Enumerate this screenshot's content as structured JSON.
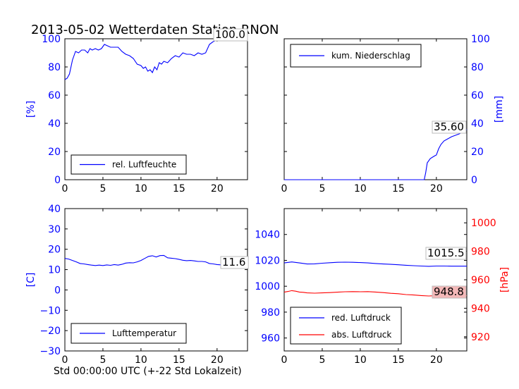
{
  "title": "2013-05-02 Wetterdaten Station RNON",
  "colors": {
    "blue": "#0000ff",
    "red": "#ff0000",
    "black": "#000000",
    "label_red_bg": "#f4b8b8"
  },
  "chart_data": [
    {
      "type": "line",
      "panel": "top-left",
      "ylabel": "[%]",
      "xlim": [
        0,
        24
      ],
      "ylim": [
        0,
        100
      ],
      "xticks": [
        "0",
        "5",
        "10",
        "15",
        "20"
      ],
      "yticks": [
        "0",
        "20",
        "40",
        "60",
        "80",
        "100"
      ],
      "legend": {
        "placement": "lower-left",
        "entries": [
          "rel. Luftfeuchte"
        ]
      },
      "last_value_label": "100.0",
      "series": [
        {
          "name": "rel. Luftfeuchte",
          "color": "#0000ff",
          "x": [
            0,
            0.3,
            0.6,
            1.0,
            1.4,
            1.8,
            2.2,
            2.6,
            3.0,
            3.3,
            3.6,
            4.0,
            4.4,
            4.8,
            5.2,
            5.6,
            6.0,
            6.5,
            7.0,
            7.5,
            8.0,
            8.5,
            9.0,
            9.5,
            10.0,
            10.3,
            10.6,
            10.9,
            11.2,
            11.5,
            11.8,
            12.1,
            12.4,
            12.7,
            13.0,
            13.5,
            14.0,
            14.5,
            15.0,
            15.5,
            16.0,
            16.5,
            17.0,
            17.5,
            18.0,
            18.5,
            19.0,
            19.5,
            20.0,
            21.0,
            22.0,
            23.0,
            24.0
          ],
          "y": [
            71,
            72,
            75,
            85,
            91,
            90,
            92,
            92,
            90,
            93,
            92,
            93,
            92,
            93,
            96,
            95,
            94,
            94,
            94,
            91,
            89,
            88,
            86,
            82,
            81,
            79,
            80,
            77,
            78,
            76,
            80,
            78,
            83,
            82,
            84,
            83,
            86,
            88,
            87,
            90,
            89,
            89,
            88,
            90,
            89,
            90,
            96,
            98,
            99,
            99.5,
            100,
            100,
            100
          ]
        }
      ]
    },
    {
      "type": "line",
      "panel": "top-right",
      "ylabel": "[mm]",
      "xlim": [
        0,
        24
      ],
      "ylim": [
        0,
        100
      ],
      "xticks": [
        "0",
        "5",
        "10",
        "15",
        "20"
      ],
      "yticks": [
        "0",
        "20",
        "40",
        "60",
        "80",
        "100"
      ],
      "legend": {
        "placement": "upper-left",
        "entries": [
          "kum. Niederschlag"
        ]
      },
      "last_value_label": "35.60",
      "series": [
        {
          "name": "kum. Niederschlag",
          "color": "#0000ff",
          "x": [
            0,
            18.4,
            18.6,
            18.8,
            19.2,
            19.5,
            19.8,
            20.0,
            20.3,
            20.6,
            21.0,
            21.5,
            22.0,
            22.5,
            23.0,
            23.5,
            24.0
          ],
          "y": [
            0,
            0,
            5,
            12,
            15,
            16,
            17,
            17.5,
            22,
            25,
            27.5,
            29,
            30.5,
            31.5,
            32.5,
            34,
            35.6
          ]
        }
      ]
    },
    {
      "type": "line",
      "panel": "bottom-left",
      "ylabel": "[C]",
      "xlabel": "Std 00:00:00 UTC (+-22 Std Lokalzeit)",
      "xlim": [
        0,
        24
      ],
      "ylim": [
        -30,
        40
      ],
      "xticks": [
        "0",
        "5",
        "10",
        "15",
        "20"
      ],
      "yticks": [
        "−30",
        "−20",
        "−10",
        "0",
        "10",
        "20",
        "30",
        "40"
      ],
      "legend": {
        "placement": "lower-left",
        "entries": [
          "Lufttemperatur"
        ]
      },
      "last_value_label": "11.6",
      "series": [
        {
          "name": "Lufttemperatur",
          "color": "#0000ff",
          "x": [
            0,
            0.5,
            1.0,
            1.5,
            2.0,
            2.5,
            3.0,
            3.5,
            4.0,
            4.5,
            5.0,
            5.5,
            6.0,
            6.5,
            7.0,
            7.5,
            8.0,
            8.5,
            9.0,
            9.5,
            10.0,
            10.5,
            11.0,
            11.5,
            12.0,
            12.5,
            13.0,
            13.5,
            14.0,
            14.5,
            15.0,
            15.5,
            16.0,
            16.5,
            17.0,
            17.5,
            18.0,
            18.5,
            19.0,
            19.5,
            20.0,
            21.0,
            22.0,
            23.0,
            24.0
          ],
          "y": [
            15.5,
            15.2,
            14.5,
            13.8,
            13.0,
            12.8,
            12.5,
            12.2,
            12.0,
            12.2,
            12.0,
            12.3,
            12.1,
            12.5,
            12.2,
            12.6,
            13.2,
            13.4,
            13.3,
            13.8,
            14.5,
            15.5,
            16.5,
            16.8,
            16.2,
            16.9,
            17.0,
            15.8,
            15.6,
            15.4,
            15.0,
            14.6,
            14.4,
            14.5,
            14.3,
            14.0,
            14.0,
            13.8,
            13.0,
            12.8,
            12.5,
            12.2,
            11.9,
            11.7,
            11.6
          ]
        }
      ]
    },
    {
      "type": "line",
      "panel": "bottom-right",
      "ylabel": "[hPa]",
      "xlim": [
        0,
        24
      ],
      "ylim": [
        950,
        1060
      ],
      "ylim_right": [
        910,
        1010
      ],
      "xticks": [
        "0",
        "5",
        "10",
        "15",
        "20"
      ],
      "yticks": [
        "960",
        "980",
        "1000",
        "1020",
        "1040"
      ],
      "yticks_right": [
        "920",
        "940",
        "960",
        "980",
        "1000"
      ],
      "legend": {
        "placement": "lower-left",
        "entries": [
          "red. Luftdruck",
          "abs. Luftdruck"
        ]
      },
      "last_value_labels": [
        "1015.5",
        "948.8"
      ],
      "series": [
        {
          "name": "red. Luftdruck",
          "color": "#0000ff",
          "axis": "left",
          "x": [
            0,
            1,
            2,
            3,
            4,
            5,
            6,
            7,
            8,
            9,
            10,
            11,
            12,
            13,
            14,
            15,
            16,
            17,
            18,
            19,
            20,
            21,
            22,
            23,
            24
          ],
          "y": [
            1018.0,
            1018.8,
            1018.0,
            1017.2,
            1017.3,
            1017.8,
            1018.2,
            1018.5,
            1018.6,
            1018.5,
            1018.3,
            1018.0,
            1017.6,
            1017.2,
            1016.9,
            1016.6,
            1016.2,
            1015.9,
            1015.6,
            1015.4,
            1015.6,
            1015.6,
            1015.5,
            1015.5,
            1015.5
          ]
        },
        {
          "name": "abs. Luftdruck",
          "color": "#ff0000",
          "axis": "right",
          "x": [
            0,
            0.5,
            1.0,
            1.5,
            2.0,
            2.5,
            3.0,
            4.0,
            5.0,
            6.0,
            7.0,
            8.0,
            9.0,
            10.0,
            11.0,
            12.0,
            13.0,
            14.0,
            15.0,
            16.0,
            17.0,
            18.0,
            19.0,
            20.0,
            21.0,
            22.0,
            23.0,
            24.0
          ],
          "y": [
            951.3,
            951.8,
            952.4,
            952.0,
            951.4,
            951.2,
            950.8,
            950.6,
            950.8,
            951.0,
            951.3,
            951.6,
            951.7,
            951.6,
            951.7,
            951.4,
            951.0,
            950.5,
            950.2,
            949.6,
            949.3,
            948.9,
            948.6,
            948.8,
            948.7,
            948.8,
            948.8,
            948.8
          ]
        }
      ]
    }
  ]
}
